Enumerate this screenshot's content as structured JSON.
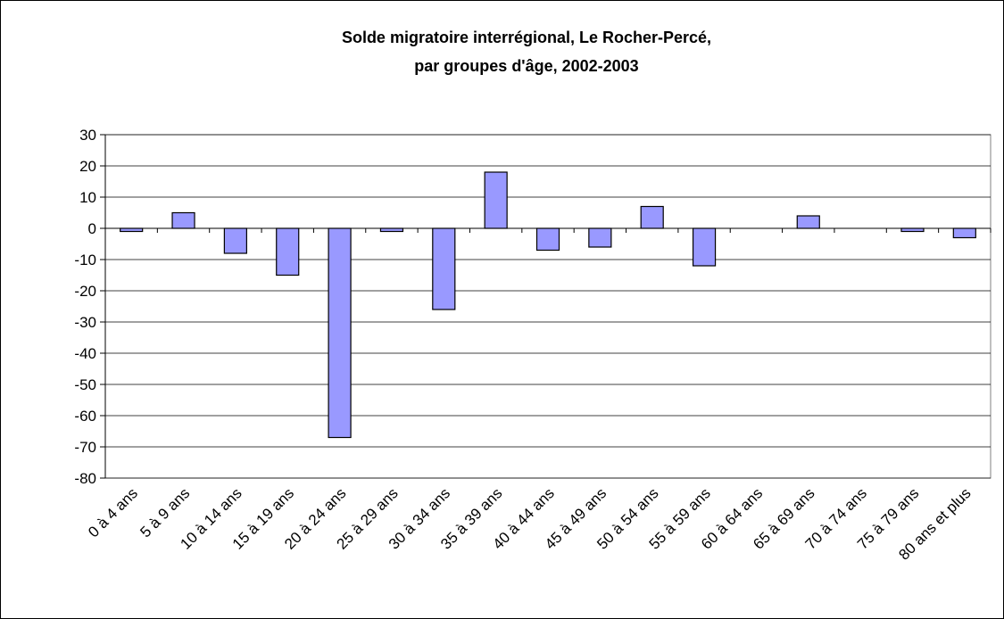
{
  "chart_data": {
    "type": "bar",
    "title": [
      "Solde migratoire interrégional, Le Rocher-Percé,",
      "par groupes d'âge, 2002-2003"
    ],
    "categories": [
      "0 à 4 ans",
      "5 à 9 ans",
      "10 à 14 ans",
      "15 à 19 ans",
      "20 à 24 ans",
      "25 à 29 ans",
      "30 à 34 ans",
      "35 à 39 ans",
      "40 à 44 ans",
      "45 à 49 ans",
      "50 à 54 ans",
      "55 à 59 ans",
      "60 à 64 ans",
      "65 à 69 ans",
      "70 à 74 ans",
      "75 à 79 ans",
      "80 ans et plus"
    ],
    "values": [
      -1,
      5,
      -8,
      -15,
      -67,
      -1,
      -26,
      18,
      -7,
      -6,
      7,
      -12,
      0,
      4,
      0,
      -1,
      -3
    ],
    "color": "#9999ff",
    "ylim": [
      -80,
      30
    ],
    "yticks": [
      -80,
      -70,
      -60,
      -50,
      -40,
      -30,
      -20,
      -10,
      0,
      10,
      20,
      30
    ],
    "grid": true
  }
}
